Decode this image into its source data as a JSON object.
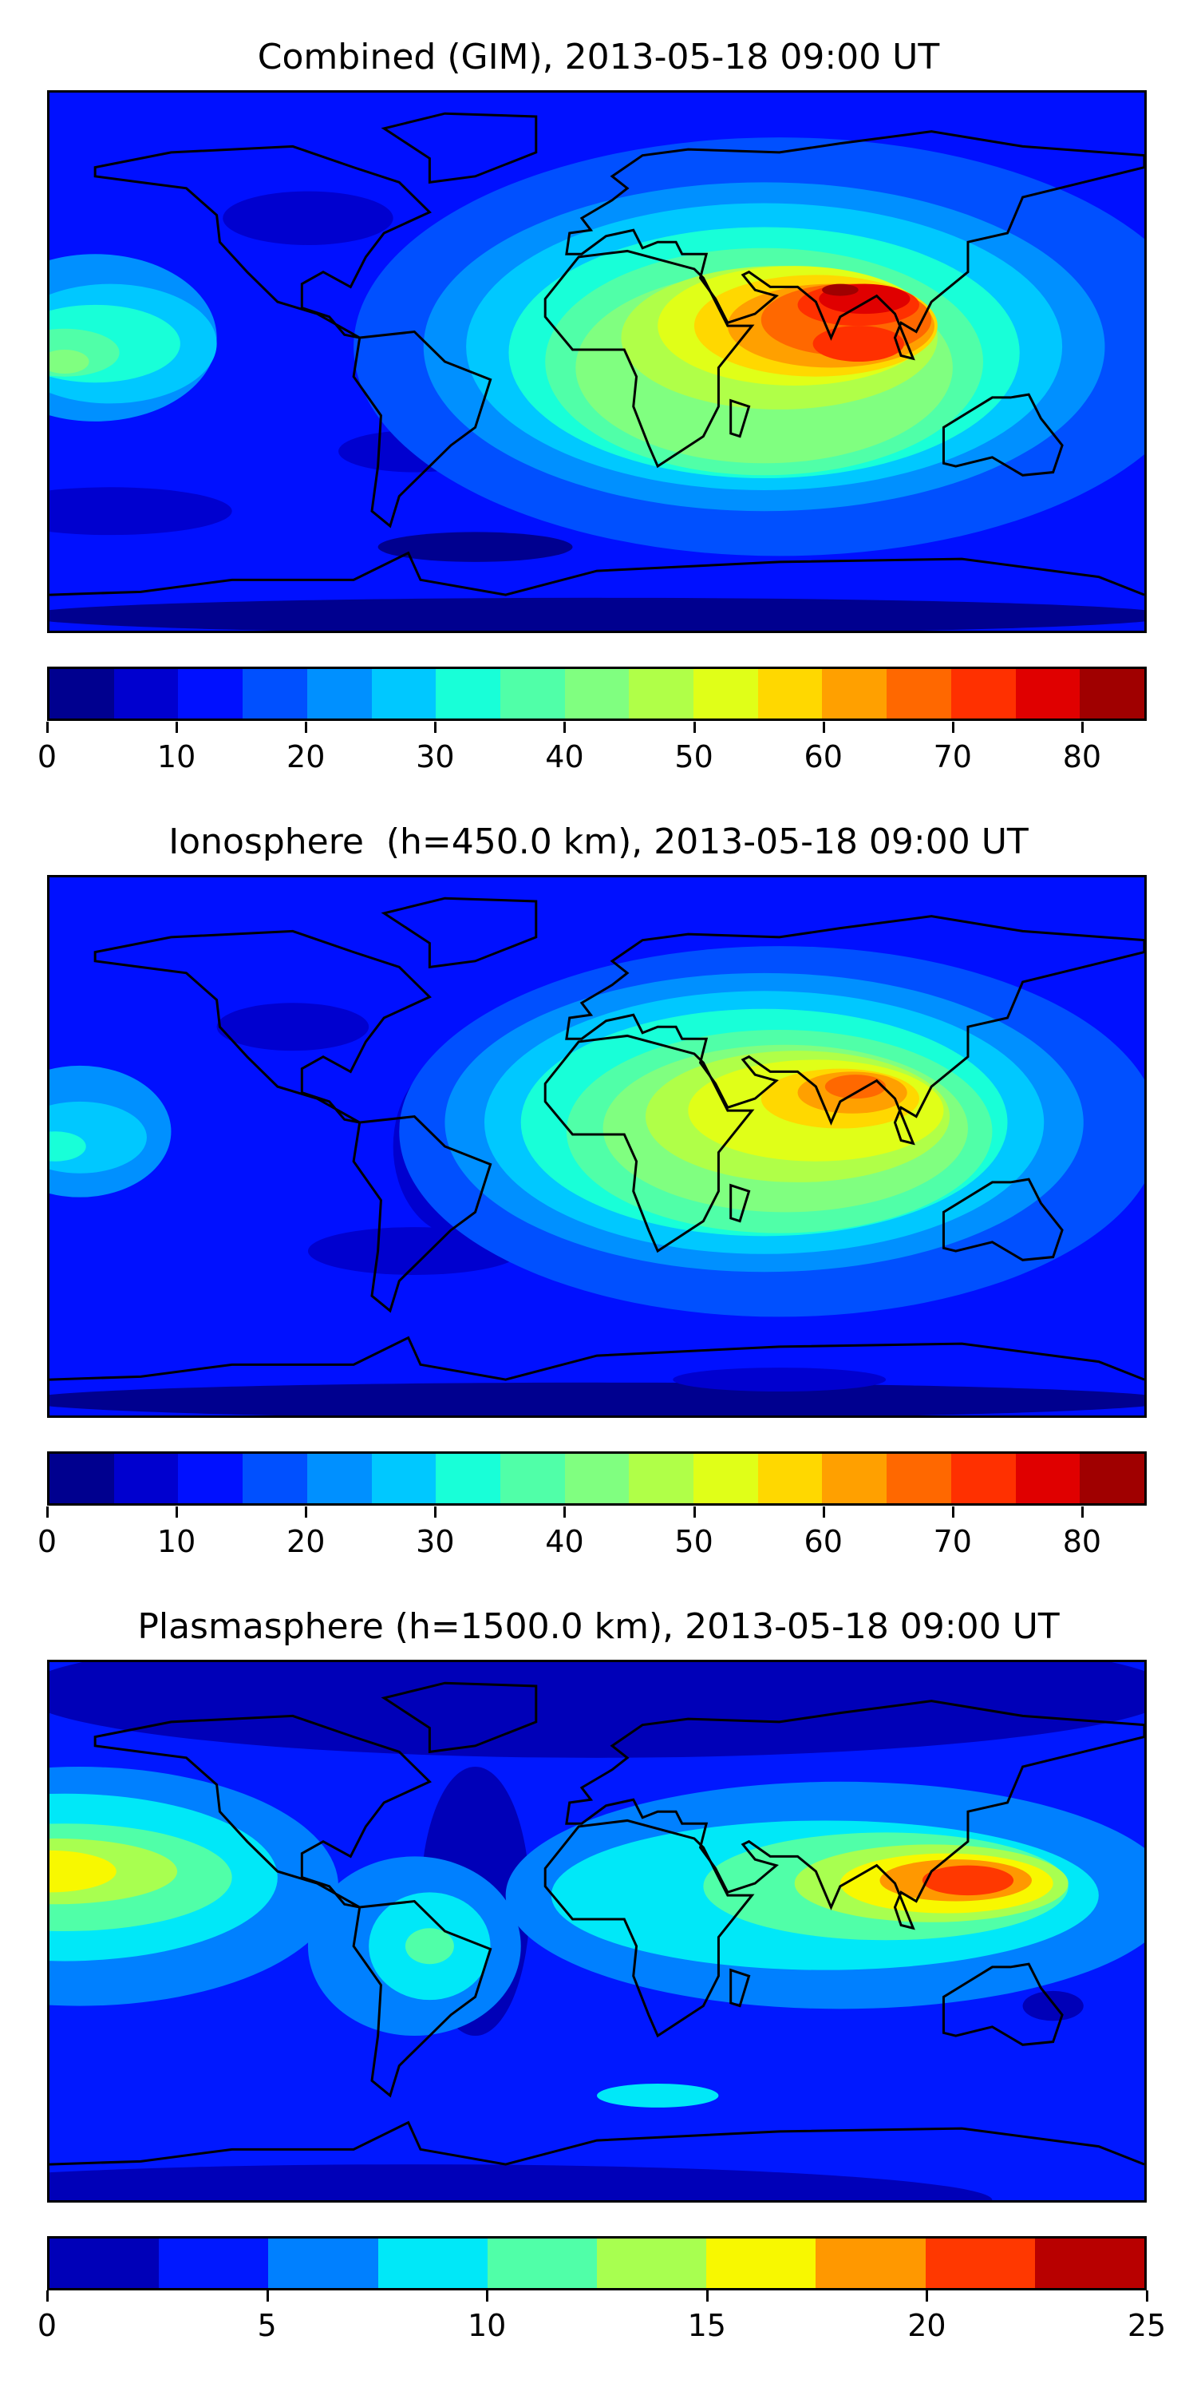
{
  "chart_data": [
    {
      "type": "heatmap",
      "subtype": "filled-contour-map",
      "title": "Combined (GIM), 2013-05-18 09:00 UT",
      "levels": [
        0,
        5,
        10,
        15,
        20,
        25,
        30,
        35,
        40,
        45,
        50,
        55,
        60,
        65,
        70,
        75,
        80,
        85
      ],
      "colors": [
        "#00008f",
        "#0000cf",
        "#0010ff",
        "#0050ff",
        "#0090ff",
        "#00c8ff",
        "#18ffd8",
        "#50ffa8",
        "#80ff80",
        "#b0ff48",
        "#e0ff18",
        "#ffd800",
        "#ffa000",
        "#ff6800",
        "#ff3000",
        "#e00000",
        "#a00000"
      ],
      "vmin": 0,
      "vmax": 85,
      "colorbar_ticks": [
        0,
        10,
        20,
        30,
        40,
        50,
        60,
        70,
        80
      ],
      "peak_region": "South/Southeast Asia",
      "peak_range": [
        80,
        85
      ]
    },
    {
      "type": "heatmap",
      "subtype": "filled-contour-map",
      "title": "Ionosphere  (h=450.0 km), 2013-05-18 09:00 UT",
      "levels": [
        0,
        5,
        10,
        15,
        20,
        25,
        30,
        35,
        40,
        45,
        50,
        55,
        60,
        65,
        70,
        75,
        80,
        85
      ],
      "colors": [
        "#00008f",
        "#0000cf",
        "#0010ff",
        "#0050ff",
        "#0090ff",
        "#00c8ff",
        "#18ffd8",
        "#50ffa8",
        "#80ff80",
        "#b0ff48",
        "#e0ff18",
        "#ffd800",
        "#ffa000",
        "#ff6800",
        "#ff3000",
        "#e00000",
        "#a00000"
      ],
      "vmin": 0,
      "vmax": 85,
      "colorbar_ticks": [
        0,
        10,
        20,
        30,
        40,
        50,
        60,
        70,
        80
      ],
      "peak_region": "India / Bay of Bengal",
      "peak_range": [
        65,
        70
      ]
    },
    {
      "type": "heatmap",
      "subtype": "filled-contour-map",
      "title": "Plasmasphere (h=1500.0 km), 2013-05-18 09:00 UT",
      "levels": [
        0,
        2.5,
        5,
        7.5,
        10,
        12.5,
        15,
        17.5,
        20,
        22.5,
        25
      ],
      "colors": [
        "#0000b8",
        "#0018ff",
        "#0080ff",
        "#00e8f8",
        "#50ffa8",
        "#a8ff50",
        "#f8f800",
        "#ff9800",
        "#ff3800",
        "#b80000"
      ],
      "vmin": 0,
      "vmax": 25,
      "colorbar_ticks": [
        0,
        5,
        10,
        15,
        20,
        25
      ],
      "peak_region": "Western Pacific / Philippines",
      "peak_range": [
        20,
        22.5
      ]
    }
  ]
}
